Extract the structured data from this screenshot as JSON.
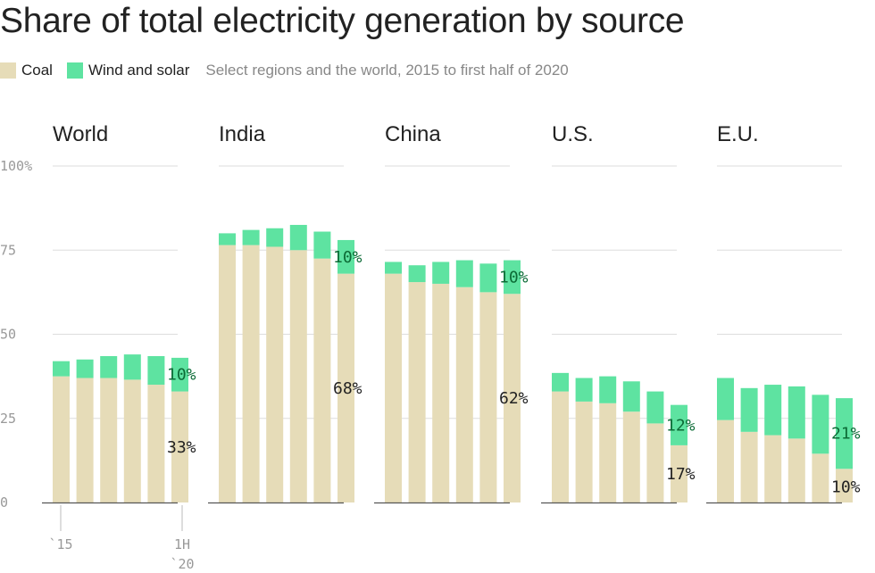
{
  "title": "Share of total electricity generation by source",
  "legend": {
    "items": [
      {
        "label": "Coal",
        "color": "#e6dcb8"
      },
      {
        "label": "Wind and solar",
        "color": "#5ee3a1"
      }
    ],
    "subtitle": "Select regions and the world, 2015 to first half of 2020"
  },
  "chart_data": {
    "type": "bar",
    "stacked": true,
    "ylim": [
      0,
      100
    ],
    "yticks": [
      "100%",
      "75",
      "50",
      "25",
      "0"
    ],
    "ytick_values": [
      100,
      75,
      50,
      25,
      0
    ],
    "x_tick_labels": {
      "first": "`15",
      "last_line1": "1H",
      "last_line2": "`20"
    },
    "colors": {
      "coal": "#e6dcb8",
      "wind_solar": "#5ee3a1",
      "coal_label": "#222222",
      "wind_label": "#0c6b36"
    },
    "panels": [
      {
        "name": "World",
        "coal": [
          37.5,
          37,
          37,
          36.5,
          35,
          33
        ],
        "wind_solar": [
          4.5,
          5.5,
          6.5,
          7.5,
          8.5,
          10
        ],
        "coal_label": "33%",
        "wind_label": "10%"
      },
      {
        "name": "India",
        "coal": [
          76.5,
          76.5,
          76,
          75,
          72.5,
          68
        ],
        "wind_solar": [
          3.5,
          4.5,
          5.5,
          7.5,
          8,
          10
        ],
        "coal_label": "68%",
        "wind_label": "10%"
      },
      {
        "name": "China",
        "coal": [
          68,
          65.5,
          65,
          64,
          62.5,
          62
        ],
        "wind_solar": [
          3.5,
          5,
          6.5,
          8,
          8.5,
          10
        ],
        "coal_label": "62%",
        "wind_label": "10%"
      },
      {
        "name": "U.S.",
        "coal": [
          33,
          30,
          29.5,
          27,
          23.5,
          17
        ],
        "wind_solar": [
          5.5,
          7,
          8,
          9,
          9.5,
          12
        ],
        "coal_label": "17%",
        "wind_label": "12%"
      },
      {
        "name": "E.U.",
        "coal": [
          24.5,
          21,
          20,
          19,
          14.5,
          10
        ],
        "wind_solar": [
          12.5,
          13,
          15,
          15.5,
          17.5,
          21
        ],
        "coal_label": "10%",
        "wind_label": "21%"
      }
    ]
  }
}
